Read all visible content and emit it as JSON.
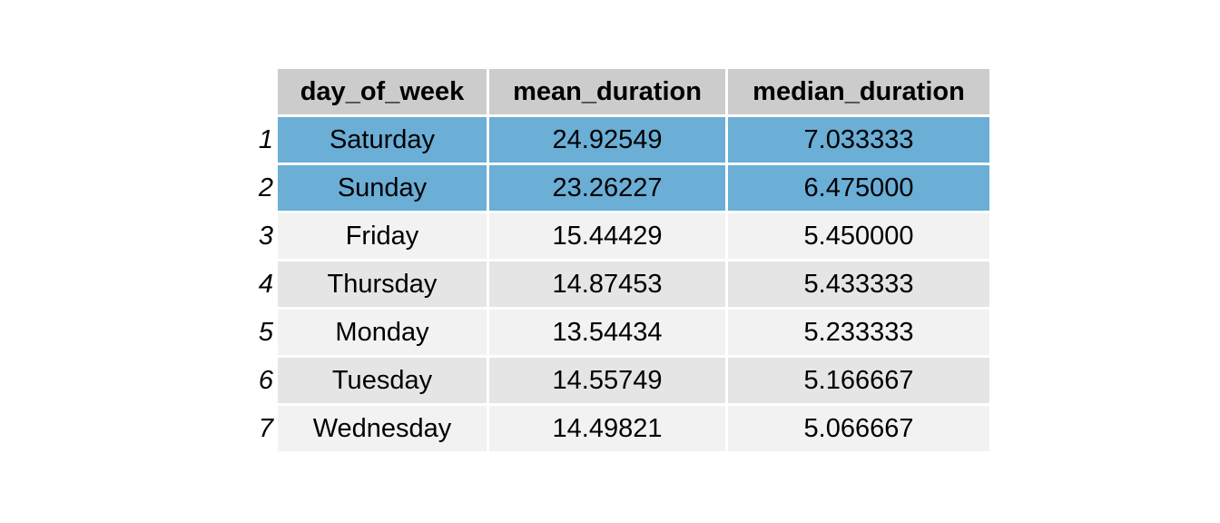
{
  "chart_data": {
    "type": "table",
    "columns": [
      "day_of_week",
      "mean_duration",
      "median_duration"
    ],
    "rows": [
      {
        "index": "1",
        "day_of_week": "Saturday",
        "mean_duration": "24.92549",
        "median_duration": "7.033333",
        "highlight": true
      },
      {
        "index": "2",
        "day_of_week": "Sunday",
        "mean_duration": "23.26227",
        "median_duration": "6.475000",
        "highlight": true
      },
      {
        "index": "3",
        "day_of_week": "Friday",
        "mean_duration": "15.44429",
        "median_duration": "5.450000",
        "highlight": false
      },
      {
        "index": "4",
        "day_of_week": "Thursday",
        "mean_duration": "14.87453",
        "median_duration": "5.433333",
        "highlight": false
      },
      {
        "index": "5",
        "day_of_week": "Monday",
        "mean_duration": "13.54434",
        "median_duration": "5.233333",
        "highlight": false
      },
      {
        "index": "6",
        "day_of_week": "Tuesday",
        "mean_duration": "14.55749",
        "median_duration": "5.166667",
        "highlight": false
      },
      {
        "index": "7",
        "day_of_week": "Wednesday",
        "mean_duration": "14.49821",
        "median_duration": "5.066667",
        "highlight": false
      }
    ],
    "colors": {
      "header_bg": "#cccccc",
      "highlight_bg": "#6baed6",
      "row_bg_odd": "#f2f2f2",
      "row_bg_even": "#e5e5e5"
    }
  }
}
